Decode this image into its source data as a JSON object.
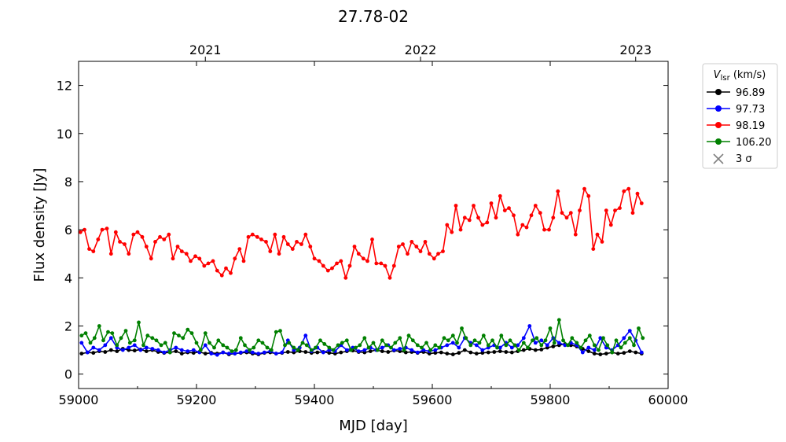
{
  "chart_data": {
    "type": "line",
    "title": "27.78-02",
    "xlabel": "MJD [day]",
    "ylabel": "Flux density [Jy]",
    "xlim": [
      59000,
      60000
    ],
    "ylim": [
      -0.6,
      13
    ],
    "xticks": [
      59000,
      59200,
      59400,
      59600,
      59800,
      60000
    ],
    "yticks": [
      0,
      2,
      4,
      6,
      8,
      10,
      12
    ],
    "top_axis": {
      "ticks": [
        {
          "label": "2021",
          "mjd": 59215
        },
        {
          "label": "2022",
          "mjd": 59580
        },
        {
          "label": "2023",
          "mjd": 59945
        }
      ]
    },
    "legend": {
      "title_main": "V",
      "title_sub": "lsr",
      "title_unit": " (km/s)",
      "placement": "outside-top-right",
      "sigma_label": "3 σ"
    },
    "series": [
      {
        "name": "96.89",
        "color": "#000000",
        "x": [
          59005,
          59015,
          59025,
          59035,
          59045,
          59055,
          59065,
          59075,
          59085,
          59095,
          59105,
          59115,
          59125,
          59135,
          59145,
          59155,
          59165,
          59175,
          59185,
          59195,
          59205,
          59215,
          59225,
          59235,
          59245,
          59255,
          59265,
          59275,
          59285,
          59295,
          59305,
          59315,
          59325,
          59335,
          59345,
          59355,
          59365,
          59375,
          59385,
          59395,
          59405,
          59415,
          59425,
          59435,
          59445,
          59455,
          59465,
          59475,
          59485,
          59495,
          59505,
          59515,
          59525,
          59535,
          59545,
          59555,
          59565,
          59575,
          59585,
          59595,
          59605,
          59615,
          59625,
          59635,
          59645,
          59655,
          59665,
          59675,
          59685,
          59695,
          59705,
          59715,
          59725,
          59735,
          59745,
          59755,
          59765,
          59775,
          59785,
          59795,
          59805,
          59815,
          59825,
          59835,
          59845,
          59855,
          59865,
          59875,
          59885,
          59895,
          59905,
          59915,
          59925,
          59935,
          59945,
          59955
        ],
        "y": [
          0.85,
          0.9,
          0.88,
          0.95,
          0.92,
          1.0,
          0.95,
          1.05,
          1.0,
          0.98,
          1.02,
          0.95,
          1.0,
          0.92,
          0.88,
          0.9,
          0.95,
          0.85,
          0.9,
          0.88,
          0.92,
          0.85,
          0.88,
          0.85,
          0.9,
          0.82,
          0.85,
          0.88,
          0.9,
          0.85,
          0.82,
          0.88,
          0.9,
          0.85,
          0.88,
          0.92,
          0.9,
          0.95,
          0.92,
          0.88,
          0.9,
          0.92,
          0.88,
          0.85,
          0.9,
          0.95,
          0.98,
          0.92,
          0.9,
          0.95,
          1.0,
          0.95,
          0.92,
          0.98,
          0.95,
          0.9,
          0.92,
          0.88,
          0.92,
          0.85,
          0.88,
          0.9,
          0.85,
          0.82,
          0.88,
          1.0,
          0.9,
          0.85,
          0.88,
          0.9,
          0.92,
          0.95,
          0.92,
          0.9,
          0.95,
          1.0,
          1.05,
          1.0,
          1.02,
          1.1,
          1.15,
          1.2,
          1.25,
          1.2,
          1.15,
          1.05,
          0.95,
          0.85,
          0.82,
          0.85,
          0.9,
          0.85,
          0.88,
          0.95,
          0.9,
          0.85
        ]
      },
      {
        "name": "97.73",
        "color": "#0000ff",
        "x": [
          59005,
          59015,
          59025,
          59035,
          59045,
          59055,
          59065,
          59075,
          59085,
          59095,
          59105,
          59115,
          59125,
          59135,
          59145,
          59155,
          59165,
          59175,
          59185,
          59195,
          59205,
          59215,
          59225,
          59235,
          59245,
          59255,
          59265,
          59275,
          59285,
          59295,
          59305,
          59315,
          59325,
          59335,
          59345,
          59355,
          59365,
          59375,
          59385,
          59395,
          59405,
          59415,
          59425,
          59435,
          59445,
          59455,
          59465,
          59475,
          59485,
          59495,
          59505,
          59515,
          59525,
          59535,
          59545,
          59555,
          59565,
          59575,
          59585,
          59595,
          59605,
          59615,
          59625,
          59635,
          59645,
          59655,
          59665,
          59675,
          59685,
          59695,
          59705,
          59715,
          59725,
          59735,
          59745,
          59755,
          59765,
          59775,
          59785,
          59795,
          59805,
          59815,
          59825,
          59835,
          59845,
          59855,
          59865,
          59875,
          59885,
          59895,
          59905,
          59915,
          59925,
          59935,
          59945,
          59955
        ],
        "y": [
          1.3,
          0.9,
          1.1,
          1.0,
          1.2,
          1.5,
          1.1,
          1.0,
          1.1,
          1.2,
          1.0,
          1.1,
          1.05,
          1.0,
          0.9,
          1.0,
          1.1,
          1.0,
          0.95,
          1.0,
          0.9,
          1.2,
          0.85,
          0.8,
          0.9,
          0.85,
          0.85,
          0.9,
          0.95,
          0.9,
          0.85,
          0.9,
          0.95,
          0.85,
          0.9,
          1.4,
          1.0,
          1.1,
          1.6,
          0.95,
          1.1,
          0.9,
          1.0,
          0.95,
          1.2,
          1.0,
          1.1,
          0.95,
          1.0,
          1.1,
          1.0,
          1.1,
          1.2,
          1.0,
          1.05,
          1.1,
          1.0,
          0.9,
          1.0,
          0.95,
          1.0,
          1.1,
          1.2,
          1.3,
          1.1,
          1.5,
          1.3,
          1.2,
          1.0,
          1.1,
          1.2,
          1.1,
          1.3,
          1.1,
          1.2,
          1.5,
          2.0,
          1.3,
          1.4,
          1.2,
          1.5,
          1.3,
          1.2,
          1.3,
          1.2,
          0.9,
          1.1,
          1.0,
          1.5,
          1.1,
          1.0,
          1.2,
          1.5,
          1.8,
          1.4,
          0.9
        ]
      },
      {
        "name": "98.19",
        "color": "#ff0000",
        "x": [
          59003,
          59010,
          59018,
          59025,
          59033,
          59040,
          59048,
          59055,
          59063,
          59070,
          59078,
          59085,
          59093,
          59100,
          59108,
          59115,
          59123,
          59130,
          59138,
          59145,
          59153,
          59160,
          59168,
          59175,
          59183,
          59190,
          59198,
          59205,
          59213,
          59220,
          59228,
          59235,
          59243,
          59250,
          59258,
          59265,
          59273,
          59280,
          59288,
          59295,
          59303,
          59310,
          59318,
          59325,
          59333,
          59340,
          59348,
          59355,
          59363,
          59370,
          59378,
          59385,
          59393,
          59400,
          59408,
          59415,
          59423,
          59430,
          59438,
          59445,
          59453,
          59460,
          59468,
          59475,
          59483,
          59490,
          59498,
          59505,
          59513,
          59520,
          59528,
          59535,
          59543,
          59550,
          59558,
          59565,
          59573,
          59580,
          59588,
          59595,
          59603,
          59610,
          59618,
          59625,
          59633,
          59640,
          59648,
          59655,
          59663,
          59670,
          59678,
          59685,
          59693,
          59700,
          59708,
          59715,
          59723,
          59730,
          59738,
          59745,
          59753,
          59760,
          59768,
          59775,
          59783,
          59790,
          59798,
          59805,
          59813,
          59820,
          59828,
          59835,
          59843,
          59850,
          59858,
          59865,
          59873,
          59880,
          59888,
          59895,
          59903,
          59910,
          59918,
          59925,
          59933,
          59940,
          59948,
          59955
        ],
        "y": [
          5.9,
          6.0,
          5.2,
          5.1,
          5.6,
          6.0,
          6.05,
          5.0,
          5.9,
          5.5,
          5.4,
          5.0,
          5.8,
          5.9,
          5.7,
          5.3,
          4.8,
          5.5,
          5.7,
          5.6,
          5.8,
          4.8,
          5.3,
          5.1,
          5.0,
          4.7,
          4.9,
          4.8,
          4.5,
          4.6,
          4.7,
          4.3,
          4.1,
          4.4,
          4.2,
          4.8,
          5.2,
          4.7,
          5.7,
          5.8,
          5.7,
          5.6,
          5.5,
          5.1,
          5.8,
          5.0,
          5.7,
          5.4,
          5.2,
          5.5,
          5.4,
          5.8,
          5.3,
          4.8,
          4.7,
          4.5,
          4.3,
          4.4,
          4.6,
          4.7,
          4.0,
          4.5,
          5.3,
          5.0,
          4.8,
          4.7,
          5.6,
          4.6,
          4.6,
          4.5,
          4.0,
          4.5,
          5.3,
          5.4,
          5.0,
          5.5,
          5.3,
          5.1,
          5.5,
          5.0,
          4.8,
          5.0,
          5.1,
          6.2,
          5.9,
          7.0,
          6.0,
          6.5,
          6.4,
          7.0,
          6.5,
          6.2,
          6.3,
          7.1,
          6.5,
          7.4,
          6.8,
          6.9,
          6.6,
          5.8,
          6.2,
          6.1,
          6.6,
          7.0,
          6.7,
          6.0,
          6.0,
          6.5,
          7.6,
          6.7,
          6.5,
          6.7,
          5.8,
          6.8,
          7.7,
          7.4,
          5.2,
          5.8,
          5.5,
          6.8,
          6.2,
          6.8,
          6.9,
          7.6,
          7.7,
          6.7,
          7.5,
          7.1
        ]
      },
      {
        "name": "106.20",
        "color": "#008000",
        "x": [
          59005,
          59012,
          59020,
          59027,
          59035,
          59042,
          59050,
          59057,
          59065,
          59072,
          59080,
          59087,
          59095,
          59102,
          59110,
          59117,
          59125,
          59132,
          59140,
          59147,
          59155,
          59162,
          59170,
          59177,
          59185,
          59192,
          59200,
          59207,
          59215,
          59222,
          59230,
          59237,
          59245,
          59252,
          59260,
          59267,
          59275,
          59282,
          59290,
          59297,
          59305,
          59312,
          59320,
          59327,
          59335,
          59342,
          59350,
          59357,
          59365,
          59372,
          59380,
          59387,
          59395,
          59402,
          59410,
          59417,
          59425,
          59432,
          59440,
          59447,
          59455,
          59462,
          59470,
          59477,
          59485,
          59492,
          59500,
          59507,
          59515,
          59522,
          59530,
          59537,
          59545,
          59552,
          59560,
          59567,
          59575,
          59582,
          59590,
          59597,
          59605,
          59612,
          59620,
          59627,
          59635,
          59642,
          59650,
          59657,
          59665,
          59672,
          59680,
          59687,
          59695,
          59702,
          59710,
          59717,
          59725,
          59732,
          59740,
          59747,
          59755,
          59762,
          59770,
          59777,
          59785,
          59792,
          59800,
          59807,
          59815,
          59822,
          59830,
          59837,
          59845,
          59852,
          59860,
          59867,
          59875,
          59882,
          59890,
          59897,
          59905,
          59912,
          59920,
          59927,
          59935,
          59942,
          59950,
          59957
        ],
        "y": [
          1.6,
          1.7,
          1.3,
          1.5,
          2.0,
          1.4,
          1.75,
          1.7,
          1.2,
          1.5,
          1.8,
          1.3,
          1.4,
          2.15,
          1.2,
          1.6,
          1.5,
          1.4,
          1.2,
          1.3,
          0.9,
          1.7,
          1.6,
          1.5,
          1.85,
          1.7,
          1.3,
          1.0,
          1.7,
          1.3,
          1.1,
          1.4,
          1.2,
          1.1,
          0.95,
          1.0,
          1.5,
          1.2,
          1.0,
          1.1,
          1.4,
          1.3,
          1.1,
          1.0,
          1.75,
          1.8,
          1.2,
          1.3,
          1.1,
          1.0,
          1.3,
          1.2,
          1.0,
          1.1,
          1.4,
          1.25,
          1.1,
          1.0,
          1.2,
          1.3,
          1.4,
          1.0,
          1.1,
          1.2,
          1.5,
          1.1,
          1.3,
          1.0,
          1.4,
          1.2,
          1.1,
          1.3,
          1.5,
          1.0,
          1.6,
          1.4,
          1.2,
          1.1,
          1.3,
          1.0,
          1.2,
          1.1,
          1.5,
          1.4,
          1.6,
          1.3,
          1.9,
          1.5,
          1.2,
          1.4,
          1.3,
          1.6,
          1.2,
          1.4,
          1.1,
          1.6,
          1.2,
          1.4,
          1.2,
          1.0,
          1.3,
          1.1,
          1.4,
          1.5,
          1.2,
          1.4,
          1.9,
          1.3,
          2.25,
          1.4,
          1.2,
          1.5,
          1.3,
          1.1,
          1.4,
          1.6,
          1.2,
          1.0,
          1.5,
          1.2,
          0.9,
          1.4,
          1.1,
          1.3,
          1.5,
          1.2,
          1.9,
          1.5
        ]
      }
    ]
  }
}
